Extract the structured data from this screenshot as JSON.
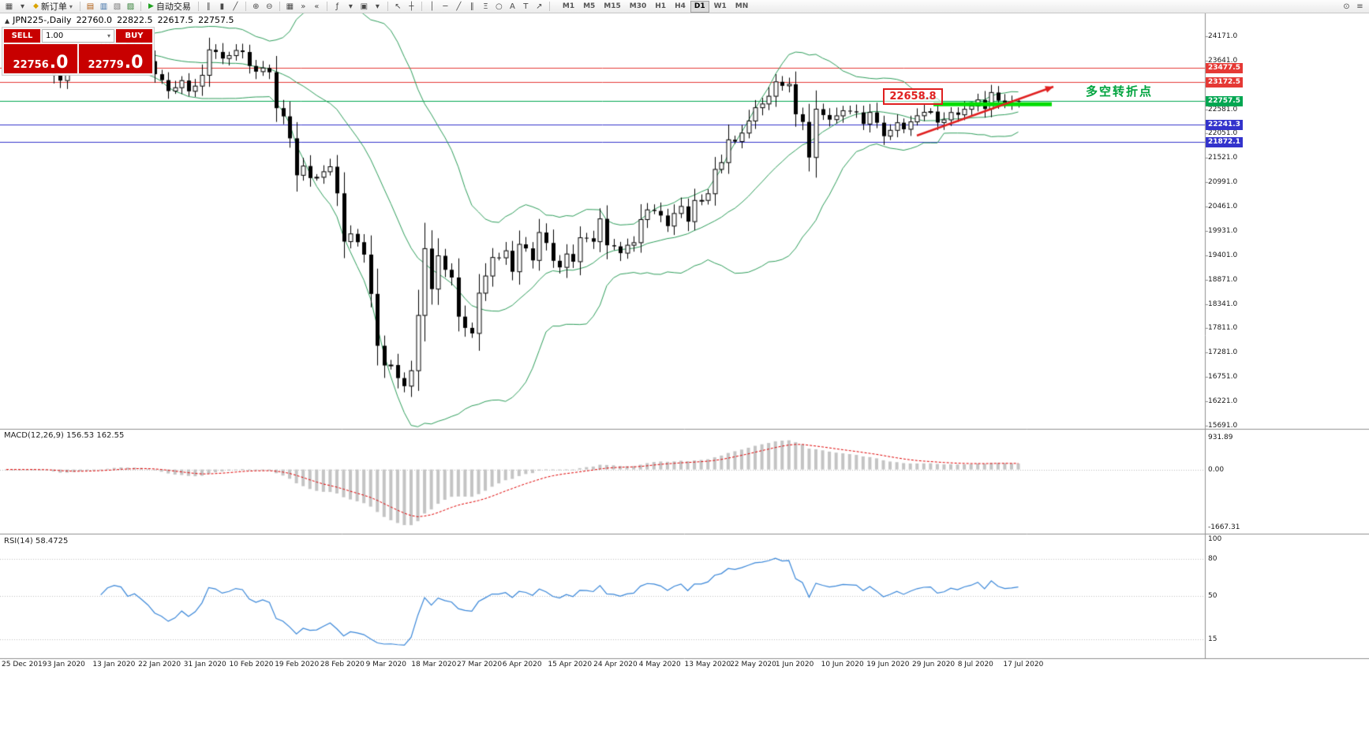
{
  "toolbar": {
    "new_order_label": "新订单",
    "new_order_icon": "◆",
    "auto_trading_label": "自动交易",
    "auto_trading_icon": "▶",
    "dropdown_glyph": "▾",
    "left_icons": [
      {
        "name": "new-chart-icon",
        "glyph": "▦"
      },
      {
        "name": "profiles-icon",
        "glyph": "▾"
      }
    ],
    "mid_icons": [
      {
        "sep": true
      },
      {
        "name": "market-watch-icon",
        "glyph": "▤",
        "color": "#b05c10"
      },
      {
        "name": "data-window-icon",
        "glyph": "▥",
        "color": "#3b6ea5"
      },
      {
        "name": "navigator-icon",
        "glyph": "▧",
        "color": "#777777"
      },
      {
        "name": "terminal-icon",
        "glyph": "▨",
        "color": "#2e7d32"
      },
      {
        "sep": true
      }
    ],
    "tool_icons": [
      {
        "sep": true
      },
      {
        "name": "bar-chart-icon",
        "glyph": "∥"
      },
      {
        "name": "candlestick-chart-icon",
        "glyph": "▮"
      },
      {
        "name": "line-chart-icon",
        "glyph": "╱"
      },
      {
        "sep": true
      },
      {
        "name": "zoom-in-icon",
        "glyph": "⊕"
      },
      {
        "name": "zoom-out-icon",
        "glyph": "⊖"
      },
      {
        "sep": true
      },
      {
        "name": "tile-windows-icon",
        "glyph": "▦"
      },
      {
        "name": "auto-scroll-icon",
        "glyph": "»"
      },
      {
        "name": "chart-shift-icon",
        "glyph": "«"
      },
      {
        "sep": true
      },
      {
        "name": "indicators-icon",
        "glyph": "ƒ"
      },
      {
        "name": "indicators-dropdown-icon",
        "glyph": "▾"
      },
      {
        "name": "templates-icon",
        "glyph": "▣"
      },
      {
        "name": "templates-dropdown-icon",
        "glyph": "▾"
      },
      {
        "sep": true
      },
      {
        "name": "cursor-icon",
        "glyph": "↖"
      },
      {
        "name": "crosshair-icon",
        "glyph": "┼"
      },
      {
        "sep": true
      },
      {
        "name": "vertical-line-icon",
        "glyph": "│"
      },
      {
        "name": "horizontal-line-icon",
        "glyph": "─"
      },
      {
        "name": "trendline-icon",
        "glyph": "╱"
      },
      {
        "name": "equidistant-channel-icon",
        "glyph": "∥"
      },
      {
        "name": "fibonacci-icon",
        "glyph": "Ξ"
      },
      {
        "name": "shapes-icon",
        "glyph": "○"
      },
      {
        "name": "text-icon",
        "glyph": "A"
      },
      {
        "name": "text-label-icon",
        "glyph": "T"
      },
      {
        "name": "arrow-objects-icon",
        "glyph": "↗"
      },
      {
        "sep": true
      }
    ],
    "right_icons": [
      {
        "name": "zoom-tool-icon",
        "glyph": "⊙"
      },
      {
        "name": "settings-icon",
        "glyph": "≡"
      }
    ],
    "timeframes": {
      "items": [
        "M1",
        "M5",
        "M15",
        "M30",
        "H1",
        "H4",
        "D1",
        "W1",
        "MN"
      ],
      "active": "D1"
    }
  },
  "chart": {
    "collapse_icon": "▲",
    "symbol_title": "JPN225-,Daily",
    "open": "22760.0",
    "high": "22822.5",
    "low": "22617.5",
    "close": "22757.5"
  },
  "trade_panel": {
    "sell_label": "SELL",
    "buy_label": "BUY",
    "volume": "1.00",
    "dropdown_icon": "▾",
    "sell_price_main": "22756",
    "sell_price_frac": ".0",
    "buy_price_main": "22779",
    "buy_price_frac": ".0"
  },
  "annotations": {
    "price_box": "22658.8",
    "turning_point": "多空转折点",
    "turning_point_color": "#00a33e",
    "arrow_color": "#e02020",
    "thick_line_color": "#00dd00"
  },
  "price_axis": {
    "labels": [
      "24171.0",
      "23641.0",
      "23111.0",
      "22581.0",
      "22051.0",
      "21521.0",
      "20991.0",
      "20461.0",
      "19931.0",
      "19401.0",
      "18871.0",
      "18341.0",
      "17811.0",
      "17281.0",
      "16751.0",
      "16221.0",
      "15691.0"
    ],
    "badges": [
      {
        "text": "23477.5",
        "price": 23477.5,
        "color": "#e53935"
      },
      {
        "text": "23172.5",
        "price": 23172.5,
        "color": "#e53935"
      },
      {
        "text": "22757.5",
        "price": 22757.5,
        "color": "#00a651"
      },
      {
        "text": "22241.3",
        "price": 22241.3,
        "color": "#3333cc"
      },
      {
        "text": "21872.1",
        "price": 21872.1,
        "color": "#3333cc"
      }
    ]
  },
  "time_axis": {
    "labels": [
      "25 Dec 2019",
      "3 Jan 2020",
      "13 Jan 2020",
      "22 Jan 2020",
      "31 Jan 2020",
      "10 Feb 2020",
      "19 Feb 2020",
      "28 Feb 2020",
      "9 Mar 2020",
      "18 Mar 2020",
      "27 Mar 2020",
      "6 Apr 2020",
      "15 Apr 2020",
      "24 Apr 2020",
      "4 May 2020",
      "13 May 2020",
      "22 May 2020",
      "1 Jun 2020",
      "10 Jun 2020",
      "19 Jun 2020",
      "29 Jun 2020",
      "8 Jul 2020",
      "17 Jul 2020"
    ]
  },
  "macd": {
    "label": "MACD(12,26,9)",
    "value_main": "156.53",
    "value_signal": "162.55",
    "axis": [
      "931.89",
      "0.00",
      "-1667.31"
    ]
  },
  "rsi": {
    "label": "RSI(14)",
    "value": "58.4725",
    "axis": [
      "100",
      "80",
      "50",
      "15"
    ],
    "levels": [
      80,
      50,
      15
    ]
  },
  "chart_data": {
    "type": "candlestick",
    "symbol": "JPN225-",
    "timeframe": "Daily",
    "last_ohlc": [
      22760.0,
      22822.5,
      22617.5,
      22757.5
    ],
    "price_axis_range": [
      15622,
      24685
    ],
    "closes": [
      23821,
      23830,
      23782,
      23837,
      23853,
      23656,
      23657,
      23320,
      23205,
      23576,
      23740,
      23850,
      23851,
      23933,
      23850,
      24041,
      24115,
      24084,
      23865,
      23931,
      23796,
      23627,
      23344,
      23215,
      22977,
      23050,
      23205,
      22972,
      23085,
      23320,
      23874,
      23828,
      23686,
      23749,
      23861,
      23827,
      23523,
      23400,
      23479,
      23387,
      22605,
      22426,
      21948,
      21143,
      21344,
      21083,
      21100,
      21220,
      21329,
      20750,
      19699,
      19867,
      19686,
      19416,
      18560,
      17431,
      17002,
      17011,
      16727,
      16552,
      16888,
      18092,
      19546,
      18665,
      19389,
      19085,
      18917,
      18065,
      17820,
      17700,
      18576,
      18950,
      19353,
      19346,
      19499,
      19043,
      19639,
      19551,
      19290,
      19897,
      19669,
      19281,
      19138,
      19429,
      19262,
      19783,
      19771,
      19697,
      20194,
      19619,
      19595,
      19448,
      19620,
      19675,
      20179,
      20390,
      20366,
      20267,
      20037,
      20311,
      20465,
      20134,
      20595,
      20596,
      20741,
      21271,
      21419,
      21916,
      21878,
      22062,
      22326,
      22614,
      22696,
      22864,
      23178,
      23091,
      23125,
      22472,
      22305,
      21531,
      22582,
      22455,
      22355,
      22437,
      22549,
      22534,
      22512,
      22260,
      22512,
      22288,
      21995,
      22122,
      22288,
      22145,
      22306,
      22439,
      22514,
      22530,
      22291,
      22350,
      22510,
      22460,
      22580,
      22650,
      22784,
      22587,
      22945,
      22770,
      22696,
      22717,
      22757.5
    ]
  }
}
